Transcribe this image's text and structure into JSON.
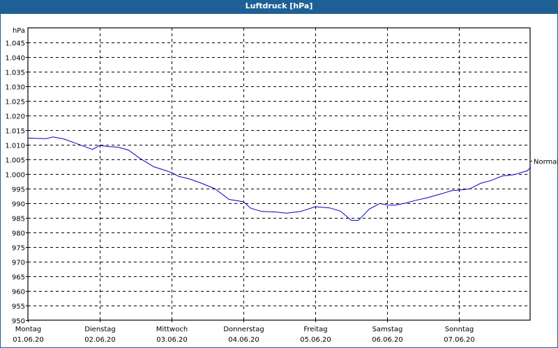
{
  "window": {
    "title": "Luftdruck [hPa]"
  },
  "chart_data": {
    "type": "line",
    "title": "Luftdruck [hPa]",
    "ylabel": "hPa",
    "xlabel": "",
    "ylim": [
      950,
      1047
    ],
    "yticks": [
      950,
      955,
      960,
      965,
      970,
      975,
      980,
      985,
      990,
      995,
      1000,
      1005,
      1010,
      1015,
      1020,
      1025,
      1030,
      1035,
      1040,
      1045
    ],
    "ytick_labels": [
      "950",
      "955",
      "960",
      "965",
      "970",
      "975",
      "980",
      "985",
      "990",
      "995",
      "1.000",
      "1.005",
      "1.010",
      "1.015",
      "1.020",
      "1.025",
      "1.030",
      "1.035",
      "1.040",
      "1.045"
    ],
    "categories": [
      {
        "day": "Montag",
        "date": "01.06.20"
      },
      {
        "day": "Dienstag",
        "date": "02.06.20"
      },
      {
        "day": "Mittwoch",
        "date": "03.06.20"
      },
      {
        "day": "Donnerstag",
        "date": "04.06.20"
      },
      {
        "day": "Freitag",
        "date": "05.06.20"
      },
      {
        "day": "Samstag",
        "date": "06.06.20"
      },
      {
        "day": "Sonntag",
        "date": "07.06.20"
      }
    ],
    "grid": true,
    "right_annotation": {
      "label": "Normal",
      "value": 1004.5
    },
    "series": [
      {
        "name": "Luftdruck",
        "color": "#0000c0",
        "x_days": [
          0,
          0.1,
          0.25,
          0.35,
          0.5,
          0.7,
          0.9,
          1.0,
          1.1,
          1.25,
          1.4,
          1.55,
          1.75,
          1.9,
          2.0,
          2.1,
          2.25,
          2.4,
          2.6,
          2.8,
          3.0,
          3.1,
          3.25,
          3.45,
          3.6,
          3.8,
          4.0,
          4.2,
          4.35,
          4.5,
          4.6,
          4.75,
          4.9,
          5.0,
          5.1,
          5.25,
          5.4,
          5.55,
          5.75,
          5.9,
          6.0,
          6.15,
          6.3,
          6.45,
          6.6,
          6.75,
          6.95,
          7.0
        ],
        "values": [
          1012.3,
          1012.2,
          1012.1,
          1012.7,
          1012.0,
          1010.2,
          1008.4,
          1009.8,
          1009.4,
          1009.2,
          1008.2,
          1005.5,
          1002.5,
          1001.3,
          1000.5,
          999.2,
          998.3,
          997.0,
          995.0,
          991.3,
          990.5,
          988.3,
          987.2,
          987.0,
          986.6,
          987.2,
          988.8,
          988.4,
          987.3,
          984.2,
          984.1,
          988.0,
          989.9,
          989.4,
          989.3,
          990.0,
          991.0,
          991.8,
          993.2,
          994.3,
          994.5,
          994.9,
          996.8,
          997.8,
          999.3,
          999.7,
          1001.1,
          1002.3
        ]
      }
    ]
  }
}
